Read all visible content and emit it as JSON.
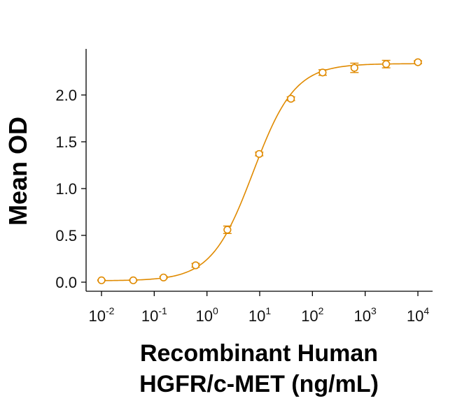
{
  "chart_data": {
    "type": "scatter",
    "title": "",
    "xlabel_lines": [
      "Recombinant Human",
      "HGFR/c-MET (ng/mL)"
    ],
    "ylabel": "Mean OD",
    "x_scale": "log10",
    "xlim": [
      0.01,
      10000
    ],
    "ylim": [
      0.0,
      2.4
    ],
    "x_ticks": [
      {
        "value": 0.01,
        "base": "10",
        "exp": "-2"
      },
      {
        "value": 0.1,
        "base": "10",
        "exp": "-1"
      },
      {
        "value": 1,
        "base": "10",
        "exp": "0"
      },
      {
        "value": 10,
        "base": "10",
        "exp": "1"
      },
      {
        "value": 100,
        "base": "10",
        "exp": "2"
      },
      {
        "value": 1000,
        "base": "10",
        "exp": "3"
      },
      {
        "value": 10000,
        "base": "10",
        "exp": "4"
      }
    ],
    "y_ticks": [
      {
        "value": 0.0,
        "label": "0.0"
      },
      {
        "value": 0.5,
        "label": "0.5"
      },
      {
        "value": 1.0,
        "label": "1.0"
      },
      {
        "value": 1.5,
        "label": "1.5"
      },
      {
        "value": 2.0,
        "label": "2.0"
      }
    ],
    "grid": false,
    "legend": "none",
    "series": [
      {
        "color": "#E08A00",
        "marker": "open-circle",
        "points": [
          {
            "x": 0.01,
            "y": 0.02,
            "err": 0.005
          },
          {
            "x": 0.04,
            "y": 0.02,
            "err": 0.005
          },
          {
            "x": 0.15,
            "y": 0.05,
            "err": 0.01
          },
          {
            "x": 0.61,
            "y": 0.18,
            "err": 0.02
          },
          {
            "x": 2.44,
            "y": 0.56,
            "err": 0.04
          },
          {
            "x": 9.77,
            "y": 1.37,
            "err": 0.02
          },
          {
            "x": 39.1,
            "y": 1.96,
            "err": 0.02
          },
          {
            "x": 156,
            "y": 2.24,
            "err": 0.03
          },
          {
            "x": 625,
            "y": 2.29,
            "err": 0.05
          },
          {
            "x": 2500,
            "y": 2.33,
            "err": 0.04
          },
          {
            "x": 10000,
            "y": 2.35,
            "err": 0.015
          }
        ],
        "fit": {
          "model": "4PL",
          "bottom": 0.015,
          "top": 2.335,
          "ec50": 7.5,
          "hill": 1.1
        }
      }
    ]
  }
}
